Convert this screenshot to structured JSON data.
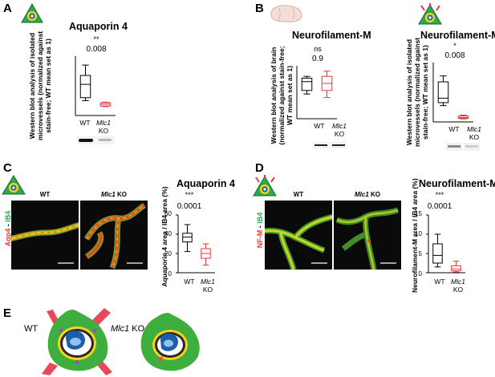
{
  "panels": {
    "A": {
      "letter": "A",
      "title": "Aquaporin 4",
      "ylabel_lines": [
        "Western blot analysis of isolated",
        "microvessels (normalized against",
        "stain-free; WT mean set as 1)"
      ],
      "sig": "**",
      "pvalue": "0.008",
      "xlabels": {
        "wt": "WT",
        "ko_gene": "Mlc1",
        "ko_suffix": "KO"
      }
    },
    "B": {
      "letter": "B",
      "left": {
        "title": "Neurofilament-M",
        "ylabel_lines": [
          "Western blot analysis of brain",
          "(normalized against stain-free;",
          "WT mean set as 1)"
        ],
        "sig": "ns",
        "pvalue": "0.9",
        "xlabels": {
          "wt": "WT",
          "ko_gene": "Mlc1",
          "ko_suffix": "KO"
        }
      },
      "right": {
        "title": "Neurofilament-M",
        "ylabel_lines": [
          "Western blot analysis of isolated",
          "microvessels (normalized against",
          "stain-free; WT mean set as 1)"
        ],
        "sig": "*",
        "pvalue": "0.008",
        "xlabels": {
          "wt": "WT",
          "ko_gene": "Mlc1",
          "ko_suffix": "KO"
        }
      }
    },
    "C": {
      "letter": "C",
      "title": "Aquaporin 4",
      "image_titles": {
        "wt": "WT",
        "ko_gene": "Mlc1",
        "ko_suffix": "KO"
      },
      "side_label": {
        "a": "Aqp4",
        "sep": " - ",
        "b": "IB4"
      },
      "ylabel_lines": [
        "Aquaporin 4 area / IB4 area (%)"
      ],
      "sig": "***",
      "pvalue": "0.0001",
      "ticks": [
        "0",
        "20",
        "40",
        "60"
      ],
      "xlabels": {
        "wt": "WT",
        "ko_gene": "Mlc1",
        "ko_suffix": "KO"
      }
    },
    "D": {
      "letter": "D",
      "title": "Neurofilament-M",
      "image_titles": {
        "wt": "WT",
        "ko_gene": "Mlc1",
        "ko_suffix": "KO"
      },
      "side_label": {
        "a": "NF-M",
        "sep": " - ",
        "b": "IB4"
      },
      "ylabel_lines": [
        "Neurofilament-M area / IB4 area (%)"
      ],
      "sig": "***",
      "pvalue": "0.0001",
      "ticks": [
        "0",
        "5",
        "10",
        "15"
      ],
      "xlabels": {
        "wt": "WT",
        "ko_gene": "Mlc1",
        "ko_suffix": "KO"
      }
    },
    "E": {
      "letter": "E",
      "wt_label": "WT",
      "ko_gene": "Mlc1",
      "ko_suffix": "KO"
    }
  },
  "chart_data": [
    {
      "type": "box",
      "panel": "A",
      "title": "Aquaporin 4",
      "ylim": [
        0,
        2
      ],
      "groups": [
        {
          "name": "WT",
          "min": 0.5,
          "q1": 0.6,
          "median": 1.05,
          "q3": 1.35,
          "max": 1.7,
          "color": "#000000"
        },
        {
          "name": "Mlc1 KO",
          "min": 0.3,
          "q1": 0.32,
          "median": 0.38,
          "q3": 0.43,
          "max": 0.45,
          "color": "#e0393e"
        }
      ]
    },
    {
      "type": "box",
      "panel": "B-left",
      "title": "Neurofilament-M",
      "ylim": [
        0,
        1.5
      ],
      "groups": [
        {
          "name": "WT",
          "min": 0.7,
          "q1": 0.8,
          "median": 1.05,
          "q3": 1.15,
          "max": 1.2,
          "color": "#000000"
        },
        {
          "name": "Mlc1 KO",
          "min": 0.6,
          "q1": 0.8,
          "median": 1.0,
          "q3": 1.2,
          "max": 1.35,
          "color": "#e0393e"
        }
      ]
    },
    {
      "type": "box",
      "panel": "B-right",
      "title": "Neurofilament-M",
      "ylim": [
        0,
        2
      ],
      "groups": [
        {
          "name": "WT",
          "min": 0.55,
          "q1": 0.65,
          "median": 0.8,
          "q3": 1.35,
          "max": 1.55,
          "color": "#000000"
        },
        {
          "name": "Mlc1 KO",
          "min": 0.1,
          "q1": 0.12,
          "median": 0.15,
          "q3": 0.2,
          "max": 0.23,
          "color": "#e0393e"
        }
      ]
    },
    {
      "type": "box",
      "panel": "C",
      "title": "Aquaporin 4",
      "ylim": [
        0,
        60
      ],
      "ticks": [
        0,
        20,
        40,
        60
      ],
      "groups": [
        {
          "name": "WT",
          "min": 22,
          "q1": 32,
          "median": 37,
          "q3": 41,
          "max": 50,
          "color": "#000000"
        },
        {
          "name": "Mlc1 KO",
          "min": 8,
          "q1": 15,
          "median": 20,
          "q3": 25,
          "max": 30,
          "color": "#e0393e"
        }
      ]
    },
    {
      "type": "box",
      "panel": "D",
      "title": "Neurofilament-M",
      "ylim": [
        0,
        15
      ],
      "ticks": [
        0,
        5,
        10,
        15
      ],
      "groups": [
        {
          "name": "WT",
          "min": 1.5,
          "q1": 2.5,
          "median": 4.5,
          "q3": 7.5,
          "max": 10,
          "color": "#000000"
        },
        {
          "name": "Mlc1 KO",
          "min": 0.2,
          "q1": 0.5,
          "median": 1.0,
          "q3": 1.8,
          "max": 3,
          "color": "#e0393e"
        }
      ]
    }
  ]
}
